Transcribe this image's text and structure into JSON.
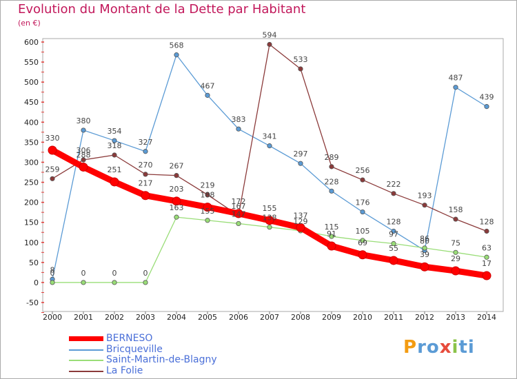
{
  "brand": "Proxiti",
  "chart_data": {
    "type": "line",
    "title": "Evolution du Montant de la Dette par Habitant",
    "unit": "(en €)",
    "xlabel": "",
    "ylabel": "",
    "ylim": [
      -50,
      600
    ],
    "yticks": [
      -50,
      0,
      50,
      100,
      150,
      200,
      250,
      300,
      350,
      400,
      450,
      500,
      550,
      600
    ],
    "categories": [
      "2000",
      "2001",
      "2002",
      "2003",
      "2004",
      "2005",
      "2006",
      "2007",
      "2008",
      "2009",
      "2010",
      "2011",
      "2012",
      "2013",
      "2014"
    ],
    "grid": false,
    "legend_position": "bottom-left",
    "series": [
      {
        "name": "BERNESO",
        "color": "#ff0000",
        "values": [
          330,
          288,
          251,
          217,
          203,
          188,
          172,
          155,
          137,
          91,
          69,
          55,
          39,
          29,
          17
        ]
      },
      {
        "name": "Bricqueville",
        "color": "#5b9bd5",
        "values": [
          8,
          380,
          354,
          327,
          568,
          467,
          383,
          341,
          297,
          228,
          176,
          128,
          80,
          487,
          439
        ]
      },
      {
        "name": "Saint-Martin-de-Blagny",
        "color": "#99dd77",
        "values": [
          0,
          0,
          0,
          0,
          163,
          155,
          147,
          138,
          129,
          115,
          105,
          97,
          86,
          75,
          63
        ]
      },
      {
        "name": "La Folie",
        "color": "#8b3a3a",
        "values": [
          259,
          306,
          318,
          270,
          267,
          219,
          167,
          594,
          533,
          289,
          256,
          222,
          193,
          158,
          128
        ]
      }
    ]
  }
}
